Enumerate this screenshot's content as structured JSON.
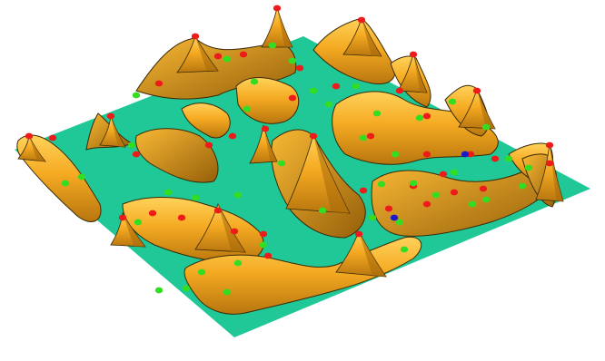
{
  "colors": {
    "background": "#ffffff",
    "plane": "#1fc896",
    "terrain_light": "#fbbf3a",
    "terrain_mid": "#f0a020",
    "terrain_dark": "#a86a0a",
    "outline": "#3a2a08",
    "marker_red": "#ee1b1b",
    "marker_green": "#33dd22",
    "marker_blue": "#1a1acc"
  },
  "markers": {
    "types": [
      "red",
      "green",
      "blue"
    ]
  }
}
